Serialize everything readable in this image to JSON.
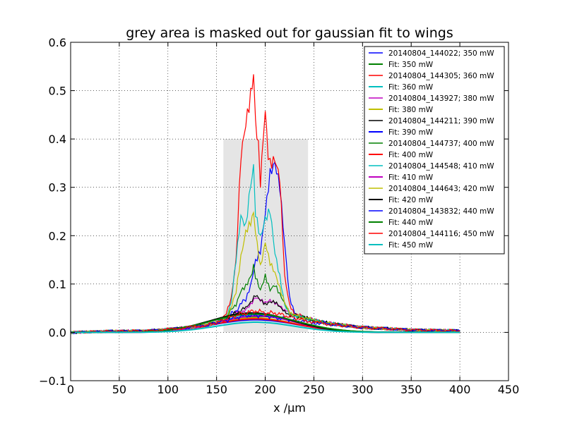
{
  "chart_data": {
    "type": "line",
    "title": "grey area is masked out for gaussian fit to wings",
    "xlabel": "x /μm",
    "ylabel": "",
    "xlim": [
      0,
      450
    ],
    "ylim": [
      -0.1,
      0.6
    ],
    "xticks": [
      "0",
      "50",
      "100",
      "150",
      "200",
      "250",
      "300",
      "350",
      "400",
      "450"
    ],
    "yticks": [
      "−0.1",
      "0.0",
      "0.1",
      "0.2",
      "0.3",
      "0.4",
      "0.5",
      "0.6"
    ],
    "grid": true,
    "legend_position": "top-right",
    "masked_region": {
      "x": [
        157,
        244
      ],
      "y": [
        0,
        0.4
      ],
      "color": "#e5e5e5"
    },
    "series": [
      {
        "name": "20140804_144022; 350 mW",
        "color": "#0000ff",
        "kind": "data",
        "x": [
          0,
          40,
          80,
          100,
          120,
          140,
          150,
          160,
          170,
          180,
          185,
          190,
          195,
          200,
          205,
          210,
          215,
          220,
          225,
          230,
          240,
          260,
          300,
          350,
          400
        ],
        "y": [
          0,
          0.002,
          0.003,
          0.006,
          0.01,
          0.015,
          0.02,
          0.03,
          0.045,
          0.07,
          0.1,
          0.15,
          0.17,
          0.25,
          0.33,
          0.35,
          0.3,
          0.18,
          0.07,
          0.04,
          0.03,
          0.02,
          0.01,
          0.005,
          0.003
        ]
      },
      {
        "name": "Fit: 350 mW",
        "color": "#008000",
        "kind": "fit",
        "amp": 0.033,
        "center": 195,
        "sigma": 42
      },
      {
        "name": "20140804_144305; 360 mW",
        "color": "#ff0000",
        "kind": "data",
        "x": [
          0,
          40,
          80,
          100,
          120,
          140,
          150,
          160,
          165,
          170,
          175,
          180,
          185,
          188,
          190,
          193,
          195,
          198,
          200,
          203,
          205,
          210,
          215,
          218,
          220,
          225,
          230,
          240,
          260,
          300,
          350,
          400
        ],
        "y": [
          0,
          0.002,
          0.003,
          0.006,
          0.01,
          0.015,
          0.02,
          0.04,
          0.07,
          0.15,
          0.37,
          0.44,
          0.5,
          0.53,
          0.45,
          0.38,
          0.32,
          0.4,
          0.47,
          0.37,
          0.36,
          0.37,
          0.33,
          0.2,
          0.12,
          0.06,
          0.04,
          0.03,
          0.02,
          0.01,
          0.005,
          0.003
        ]
      },
      {
        "name": "Fit: 360 mW",
        "color": "#00bfbf",
        "kind": "fit",
        "amp": 0.036,
        "center": 192,
        "sigma": 40
      },
      {
        "name": "20140804_143927; 380 mW",
        "color": "#bf00bf",
        "kind": "data",
        "x": [
          0,
          40,
          80,
          100,
          120,
          140,
          150,
          160,
          170,
          180,
          185,
          190,
          195,
          200,
          205,
          210,
          215,
          220,
          230,
          240,
          260,
          300,
          350,
          400
        ],
        "y": [
          0,
          0.002,
          0.003,
          0.006,
          0.01,
          0.015,
          0.02,
          0.03,
          0.04,
          0.045,
          0.055,
          0.07,
          0.065,
          0.06,
          0.065,
          0.06,
          0.055,
          0.045,
          0.035,
          0.03,
          0.02,
          0.01,
          0.005,
          0.003
        ]
      },
      {
        "name": "Fit: 380 mW",
        "color": "#bfbf00",
        "kind": "fit",
        "amp": 0.03,
        "center": 188,
        "sigma": 42
      },
      {
        "name": "20140804_144211; 390 mW",
        "color": "#000000",
        "kind": "data",
        "x": [
          0,
          40,
          80,
          100,
          120,
          140,
          150,
          160,
          170,
          180,
          185,
          190,
          195,
          200,
          205,
          210,
          215,
          220,
          230,
          240,
          260,
          300,
          350,
          400
        ],
        "y": [
          0,
          0.002,
          0.003,
          0.006,
          0.01,
          0.015,
          0.02,
          0.03,
          0.04,
          0.05,
          0.06,
          0.075,
          0.065,
          0.055,
          0.06,
          0.06,
          0.05,
          0.04,
          0.035,
          0.03,
          0.02,
          0.01,
          0.005,
          0.003
        ]
      },
      {
        "name": "Fit: 390 mW",
        "color": "#0000ff",
        "kind": "fit",
        "amp": 0.026,
        "center": 190,
        "sigma": 44
      },
      {
        "name": "20140804_144737; 400 mW",
        "color": "#008000",
        "kind": "data",
        "x": [
          0,
          40,
          80,
          100,
          120,
          140,
          150,
          160,
          170,
          175,
          180,
          185,
          188,
          190,
          195,
          200,
          205,
          210,
          215,
          220,
          225,
          230,
          240,
          260,
          300,
          350,
          400
        ],
        "y": [
          0,
          0.002,
          0.003,
          0.006,
          0.01,
          0.015,
          0.02,
          0.03,
          0.06,
          0.09,
          0.1,
          0.12,
          0.14,
          0.12,
          0.09,
          0.12,
          0.09,
          0.1,
          0.08,
          0.06,
          0.04,
          0.035,
          0.03,
          0.02,
          0.01,
          0.005,
          0.003
        ]
      },
      {
        "name": "Fit: 400 mW",
        "color": "#ff0000",
        "kind": "fit",
        "amp": 0.028,
        "center": 190,
        "sigma": 42
      },
      {
        "name": "20140804_144548; 410 mW",
        "color": "#00bfbf",
        "kind": "data",
        "x": [
          0,
          40,
          80,
          100,
          120,
          140,
          150,
          160,
          165,
          170,
          175,
          180,
          185,
          188,
          190,
          195,
          200,
          205,
          210,
          215,
          220,
          225,
          230,
          240,
          260,
          300,
          350,
          400
        ],
        "y": [
          0,
          0.002,
          0.003,
          0.006,
          0.01,
          0.015,
          0.02,
          0.03,
          0.06,
          0.15,
          0.24,
          0.22,
          0.31,
          0.33,
          0.25,
          0.2,
          0.24,
          0.26,
          0.17,
          0.12,
          0.06,
          0.04,
          0.035,
          0.03,
          0.02,
          0.01,
          0.005,
          0.003
        ]
      },
      {
        "name": "Fit: 410 mW",
        "color": "#bf00bf",
        "kind": "fit",
        "amp": 0.034,
        "center": 192,
        "sigma": 40
      },
      {
        "name": "20140804_144643; 420 mW",
        "color": "#bfbf00",
        "kind": "data",
        "x": [
          0,
          40,
          80,
          100,
          120,
          140,
          150,
          160,
          170,
          175,
          180,
          185,
          188,
          190,
          195,
          200,
          205,
          210,
          215,
          220,
          225,
          230,
          240,
          260,
          300,
          350,
          400
        ],
        "y": [
          0,
          0.002,
          0.003,
          0.006,
          0.01,
          0.015,
          0.02,
          0.03,
          0.08,
          0.15,
          0.2,
          0.22,
          0.24,
          0.2,
          0.13,
          0.18,
          0.14,
          0.12,
          0.09,
          0.06,
          0.04,
          0.035,
          0.03,
          0.02,
          0.01,
          0.005,
          0.003
        ]
      },
      {
        "name": "Fit: 420 mW",
        "color": "#000000",
        "kind": "fit",
        "amp": 0.04,
        "center": 186,
        "sigma": 42
      },
      {
        "name": "20140804_143832; 440 mW",
        "color": "#0000ff",
        "kind": "data",
        "x": [
          0,
          40,
          80,
          100,
          120,
          140,
          150,
          160,
          170,
          180,
          190,
          200,
          210,
          220,
          230,
          240,
          260,
          300,
          350,
          400
        ],
        "y": [
          0,
          0.002,
          0.003,
          0.006,
          0.01,
          0.015,
          0.02,
          0.025,
          0.03,
          0.035,
          0.035,
          0.035,
          0.03,
          0.028,
          0.025,
          0.022,
          0.018,
          0.01,
          0.005,
          0.003
        ]
      },
      {
        "name": "Fit: 440 mW",
        "color": "#008000",
        "kind": "fit",
        "amp": 0.038,
        "center": 188,
        "sigma": 44
      },
      {
        "name": "20140804_144116; 450 mW",
        "color": "#ff0000",
        "kind": "data",
        "x": [
          0,
          40,
          80,
          100,
          120,
          140,
          150,
          160,
          170,
          180,
          190,
          200,
          210,
          220,
          230,
          240,
          260,
          300,
          350,
          400
        ],
        "y": [
          0,
          0.002,
          0.003,
          0.006,
          0.01,
          0.015,
          0.02,
          0.028,
          0.035,
          0.04,
          0.045,
          0.04,
          0.04,
          0.035,
          0.03,
          0.025,
          0.018,
          0.01,
          0.005,
          0.003
        ]
      },
      {
        "name": "Fit: 450 mW",
        "color": "#00bfbf",
        "kind": "fit",
        "amp": 0.021,
        "center": 190,
        "sigma": 40
      }
    ]
  }
}
